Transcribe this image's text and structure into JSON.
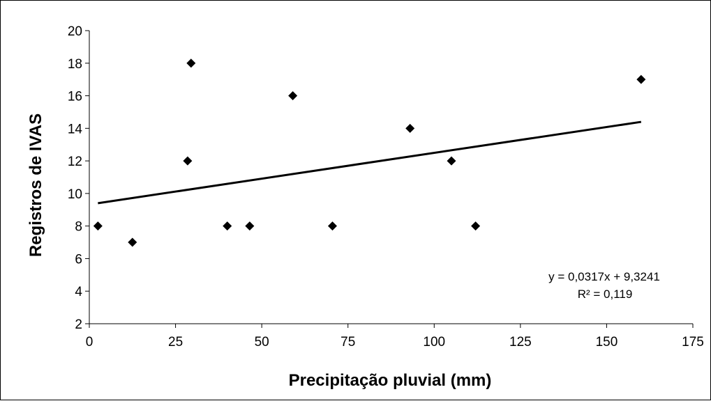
{
  "chart_data": {
    "type": "scatter",
    "title": "",
    "xlabel": "Precipitação pluvial (mm)",
    "ylabel": "Registros de IVAS",
    "xlim": [
      0,
      175
    ],
    "ylim": [
      2,
      20
    ],
    "x_ticks": [
      0,
      25,
      50,
      75,
      100,
      125,
      150,
      175
    ],
    "y_ticks": [
      2,
      4,
      6,
      8,
      10,
      12,
      14,
      16,
      18,
      20
    ],
    "grid": false,
    "legend": "none",
    "series": [
      {
        "marker": "diamond",
        "color": "#000000",
        "points": [
          {
            "x": 2.5,
            "y": 8
          },
          {
            "x": 12.5,
            "y": 7
          },
          {
            "x": 28.5,
            "y": 12
          },
          {
            "x": 29.5,
            "y": 18
          },
          {
            "x": 40,
            "y": 8
          },
          {
            "x": 46.5,
            "y": 8
          },
          {
            "x": 59,
            "y": 16
          },
          {
            "x": 70.5,
            "y": 8
          },
          {
            "x": 93,
            "y": 14
          },
          {
            "x": 105,
            "y": 12
          },
          {
            "x": 112,
            "y": 8
          },
          {
            "x": 160,
            "y": 17
          }
        ]
      }
    ],
    "trendline": {
      "slope": 0.0317,
      "intercept": 9.3241,
      "x_range": [
        2.5,
        160
      ],
      "equation_text": "y = 0,0317x  + 9,3241",
      "r2_text": "R² = 0,119"
    }
  }
}
